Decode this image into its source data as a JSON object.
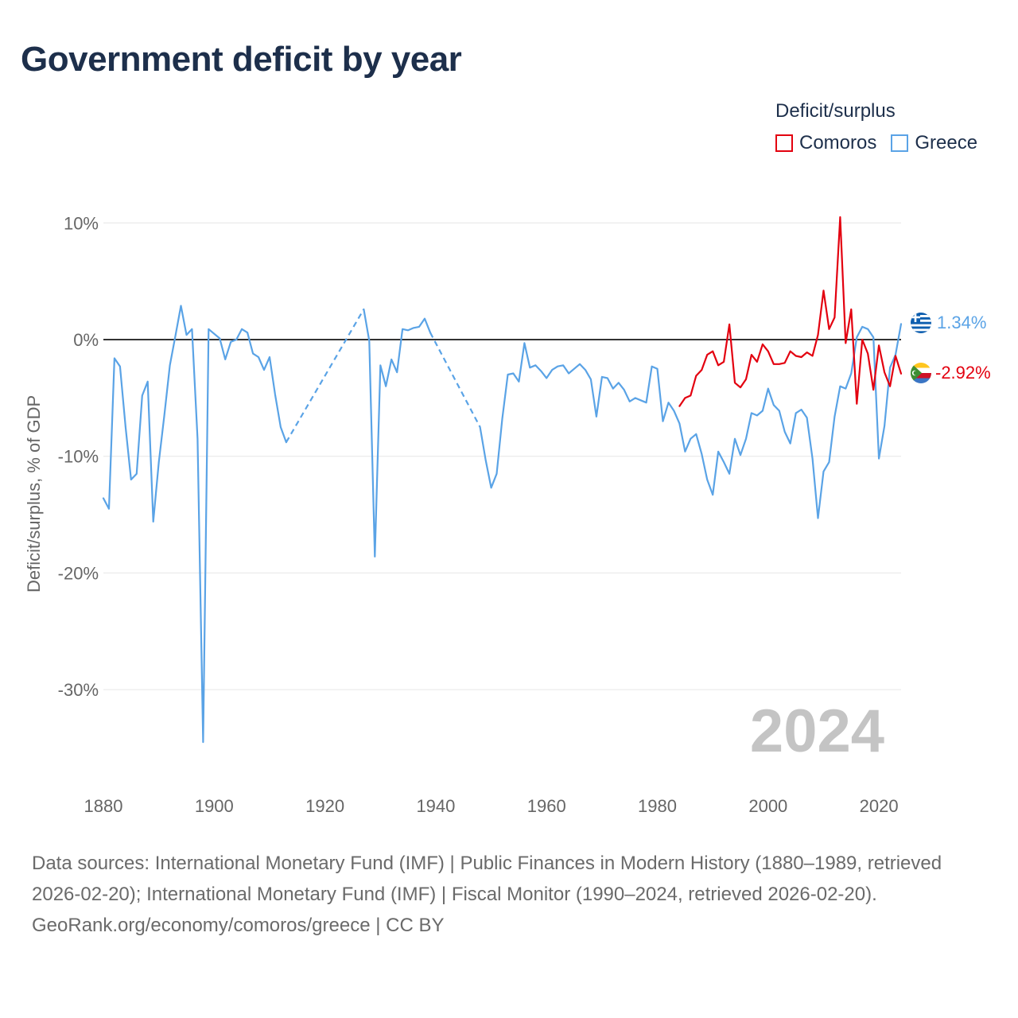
{
  "title": "Government deficit by year",
  "legend": {
    "title": "Deficit/surplus",
    "items": [
      {
        "name": "Comoros",
        "color": "#e3000f"
      },
      {
        "name": "Greece",
        "color": "#5aa3e6"
      }
    ]
  },
  "footer": {
    "sources": "Data sources: International Monetary Fund (IMF) | Public Finances in Modern History (1880–1989, retrieved 2026-02-20); International Monetary Fund (IMF) | Fiscal Monitor (1990–2024, retrieved 2026-02-20).",
    "credit": "GeoRank.org/economy/comoros/greece | CC BY"
  },
  "chart_data": {
    "type": "line",
    "title": "Government deficit by year",
    "xlabel": "",
    "ylabel": "Deficit/surplus, % of GDP",
    "xlim": [
      1880,
      2024
    ],
    "ylim": [
      -35,
      12
    ],
    "x_ticks": [
      1880,
      1900,
      1920,
      1940,
      1960,
      1980,
      2000,
      2020
    ],
    "y_ticks": [
      10,
      0,
      -10,
      -20,
      -30
    ],
    "y_tick_labels": [
      "10%",
      "0%",
      "-10%",
      "-20%",
      "-30%"
    ],
    "year_label": "2024",
    "series": [
      {
        "name": "Greece",
        "color": "#5aa3e6",
        "end_label": "1.34%",
        "gaps_dashed": true,
        "points": [
          [
            1880,
            -13.6
          ],
          [
            1881,
            -14.5
          ],
          [
            1882,
            -1.6
          ],
          [
            1883,
            -2.3
          ],
          [
            1884,
            -7.5
          ],
          [
            1885,
            -12.0
          ],
          [
            1886,
            -11.5
          ],
          [
            1887,
            -4.8
          ],
          [
            1888,
            -3.6
          ],
          [
            1889,
            -15.6
          ],
          [
            1890,
            -10.5
          ],
          [
            1891,
            -6.5
          ],
          [
            1892,
            -2.2
          ],
          [
            1893,
            0.3
          ],
          [
            1894,
            2.9
          ],
          [
            1895,
            0.4
          ],
          [
            1896,
            0.9
          ],
          [
            1897,
            -8.5
          ],
          [
            1898,
            -34.5
          ],
          [
            1899,
            0.9
          ],
          [
            1900,
            0.5
          ],
          [
            1901,
            0.1
          ],
          [
            1902,
            -1.7
          ],
          [
            1903,
            -0.2
          ],
          [
            1904,
            0.0
          ],
          [
            1905,
            0.9
          ],
          [
            1906,
            0.6
          ],
          [
            1907,
            -1.2
          ],
          [
            1908,
            -1.5
          ],
          [
            1909,
            -2.6
          ],
          [
            1910,
            -1.5
          ],
          [
            1911,
            -4.7
          ],
          [
            1912,
            -7.5
          ],
          [
            1913,
            -8.8
          ],
          [
            1927,
            2.6
          ],
          [
            1928,
            -0.1
          ],
          [
            1929,
            -18.6
          ],
          [
            1930,
            -2.2
          ],
          [
            1931,
            -4.0
          ],
          [
            1932,
            -1.7
          ],
          [
            1933,
            -2.8
          ],
          [
            1934,
            0.9
          ],
          [
            1935,
            0.8
          ],
          [
            1936,
            1.0
          ],
          [
            1937,
            1.1
          ],
          [
            1938,
            1.8
          ],
          [
            1939,
            0.6
          ],
          [
            1948,
            -7.5
          ],
          [
            1949,
            -10.3
          ],
          [
            1950,
            -12.7
          ],
          [
            1951,
            -11.5
          ],
          [
            1952,
            -6.8
          ],
          [
            1953,
            -3.0
          ],
          [
            1954,
            -2.9
          ],
          [
            1955,
            -3.6
          ],
          [
            1956,
            -0.3
          ],
          [
            1957,
            -2.4
          ],
          [
            1958,
            -2.2
          ],
          [
            1959,
            -2.7
          ],
          [
            1960,
            -3.3
          ],
          [
            1961,
            -2.6
          ],
          [
            1962,
            -2.3
          ],
          [
            1963,
            -2.2
          ],
          [
            1964,
            -2.9
          ],
          [
            1965,
            -2.5
          ],
          [
            1966,
            -2.1
          ],
          [
            1967,
            -2.6
          ],
          [
            1968,
            -3.4
          ],
          [
            1969,
            -6.6
          ],
          [
            1970,
            -3.2
          ],
          [
            1971,
            -3.3
          ],
          [
            1972,
            -4.2
          ],
          [
            1973,
            -3.7
          ],
          [
            1974,
            -4.3
          ],
          [
            1975,
            -5.3
          ],
          [
            1976,
            -5.0
          ],
          [
            1977,
            -5.2
          ],
          [
            1978,
            -5.4
          ],
          [
            1979,
            -2.3
          ],
          [
            1980,
            -2.5
          ],
          [
            1981,
            -7.0
          ],
          [
            1982,
            -5.4
          ],
          [
            1983,
            -6.1
          ],
          [
            1984,
            -7.2
          ],
          [
            1985,
            -9.6
          ],
          [
            1986,
            -8.5
          ],
          [
            1987,
            -8.1
          ],
          [
            1988,
            -9.8
          ],
          [
            1989,
            -12.0
          ],
          [
            1990,
            -13.3
          ],
          [
            1991,
            -9.6
          ],
          [
            1992,
            -10.5
          ],
          [
            1993,
            -11.5
          ],
          [
            1994,
            -8.5
          ],
          [
            1995,
            -9.9
          ],
          [
            1996,
            -8.5
          ],
          [
            1997,
            -6.3
          ],
          [
            1998,
            -6.5
          ],
          [
            1999,
            -6.1
          ],
          [
            2000,
            -4.2
          ],
          [
            2001,
            -5.6
          ],
          [
            2002,
            -6.1
          ],
          [
            2003,
            -7.9
          ],
          [
            2004,
            -8.9
          ],
          [
            2005,
            -6.3
          ],
          [
            2006,
            -6.0
          ],
          [
            2007,
            -6.7
          ],
          [
            2008,
            -10.2
          ],
          [
            2009,
            -15.3
          ],
          [
            2010,
            -11.3
          ],
          [
            2011,
            -10.5
          ],
          [
            2012,
            -6.6
          ],
          [
            2013,
            -4.0
          ],
          [
            2014,
            -4.2
          ],
          [
            2015,
            -2.9
          ],
          [
            2016,
            0.2
          ],
          [
            2017,
            1.1
          ],
          [
            2018,
            0.9
          ],
          [
            2019,
            0.2
          ],
          [
            2020,
            -10.2
          ],
          [
            2021,
            -7.4
          ],
          [
            2022,
            -2.4
          ],
          [
            2023,
            -1.3
          ],
          [
            2024,
            1.34
          ]
        ]
      },
      {
        "name": "Comoros",
        "color": "#e3000f",
        "end_label": "-2.92%",
        "gaps_dashed": false,
        "points": [
          [
            1984,
            -5.7
          ],
          [
            1985,
            -5.0
          ],
          [
            1986,
            -4.8
          ],
          [
            1987,
            -3.1
          ],
          [
            1988,
            -2.6
          ],
          [
            1989,
            -1.3
          ],
          [
            1990,
            -1.0
          ],
          [
            1991,
            -2.2
          ],
          [
            1992,
            -1.9
          ],
          [
            1993,
            1.3
          ],
          [
            1994,
            -3.7
          ],
          [
            1995,
            -4.1
          ],
          [
            1996,
            -3.4
          ],
          [
            1997,
            -1.3
          ],
          [
            1998,
            -1.9
          ],
          [
            1999,
            -0.4
          ],
          [
            2000,
            -1.0
          ],
          [
            2001,
            -2.1
          ],
          [
            2002,
            -2.1
          ],
          [
            2003,
            -2.0
          ],
          [
            2004,
            -1.0
          ],
          [
            2005,
            -1.4
          ],
          [
            2006,
            -1.5
          ],
          [
            2007,
            -1.1
          ],
          [
            2008,
            -1.4
          ],
          [
            2009,
            0.4
          ],
          [
            2010,
            4.2
          ],
          [
            2011,
            0.9
          ],
          [
            2012,
            1.9
          ],
          [
            2013,
            10.5
          ],
          [
            2014,
            -0.3
          ],
          [
            2015,
            2.6
          ],
          [
            2016,
            -5.5
          ],
          [
            2017,
            0.0
          ],
          [
            2018,
            -1.2
          ],
          [
            2019,
            -4.3
          ],
          [
            2020,
            -0.5
          ],
          [
            2021,
            -2.8
          ],
          [
            2022,
            -4.0
          ],
          [
            2023,
            -1.4
          ],
          [
            2024,
            -2.92
          ]
        ]
      }
    ]
  }
}
